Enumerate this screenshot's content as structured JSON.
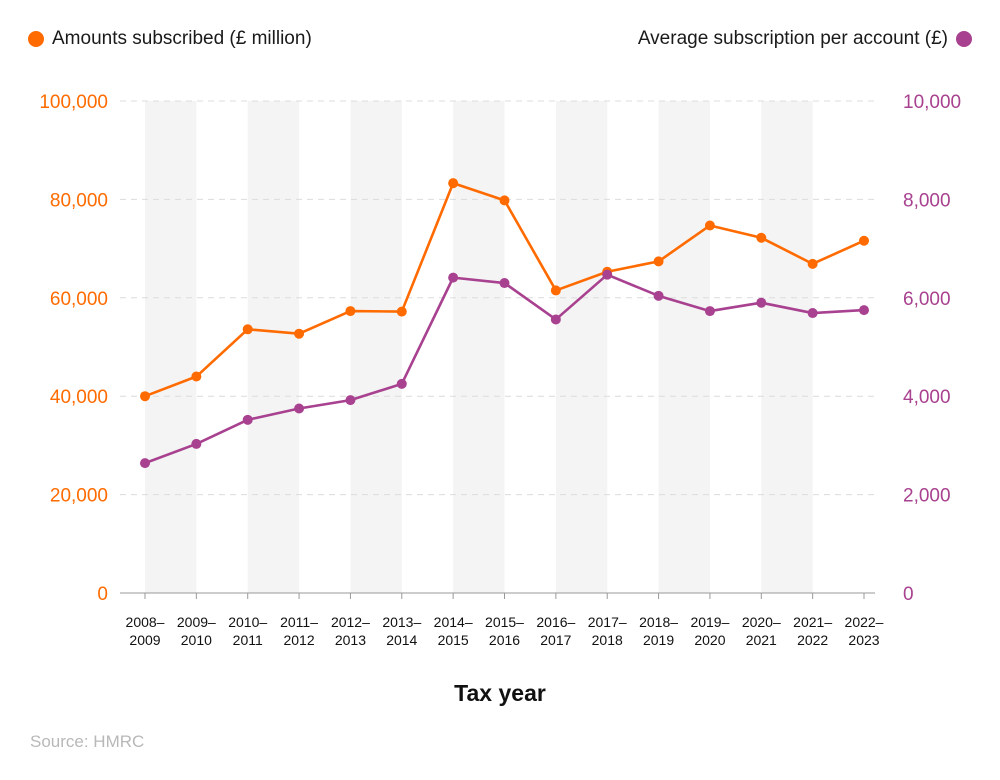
{
  "chart_data": {
    "type": "line",
    "xlabel": "Tax year",
    "categories": [
      [
        "2008–",
        "2009"
      ],
      [
        "2009–",
        "2010"
      ],
      [
        "2010–",
        "2011"
      ],
      [
        "2011–",
        "2012"
      ],
      [
        "2012–",
        "2013"
      ],
      [
        "2013–",
        "2014"
      ],
      [
        "2014–",
        "2015"
      ],
      [
        "2015–",
        "2016"
      ],
      [
        "2016–",
        "2017"
      ],
      [
        "2017–",
        "2018"
      ],
      [
        "2018–",
        "2019"
      ],
      [
        "2019–",
        "2020"
      ],
      [
        "2020–",
        "2021"
      ],
      [
        "2021–",
        "2022"
      ],
      [
        "2022–",
        "2023"
      ]
    ],
    "y_left": {
      "ylim": [
        0,
        100000
      ],
      "ticks": [
        "0",
        "20,000",
        "40,000",
        "60,000",
        "80,000",
        "100,000"
      ],
      "color": "#ff6b00"
    },
    "y_right": {
      "ylim": [
        0,
        10000
      ],
      "ticks": [
        "0",
        "2,000",
        "4,000",
        "6,000",
        "8,000",
        "10,000"
      ],
      "color": "#a8418f"
    },
    "grid": "horizontal dashed",
    "series": [
      {
        "name": "Amounts subscribed (£ million)",
        "axis": "left",
        "color": "#ff6b00",
        "values": [
          40000,
          44000,
          53600,
          52700,
          57300,
          57200,
          83300,
          79800,
          61500,
          65300,
          67400,
          74700,
          72200,
          66900,
          71600
        ]
      },
      {
        "name": "Average subscription per account (£)",
        "axis": "right",
        "color": "#a8418f",
        "values": [
          2640,
          3030,
          3520,
          3750,
          3920,
          4250,
          6410,
          6300,
          5560,
          6470,
          6040,
          5730,
          5900,
          5690,
          5750
        ]
      }
    ]
  },
  "legend": {
    "left_label": "Amounts subscribed (£ million)",
    "right_label": "Average subscription per account (£)"
  },
  "source": "Source: HMRC"
}
